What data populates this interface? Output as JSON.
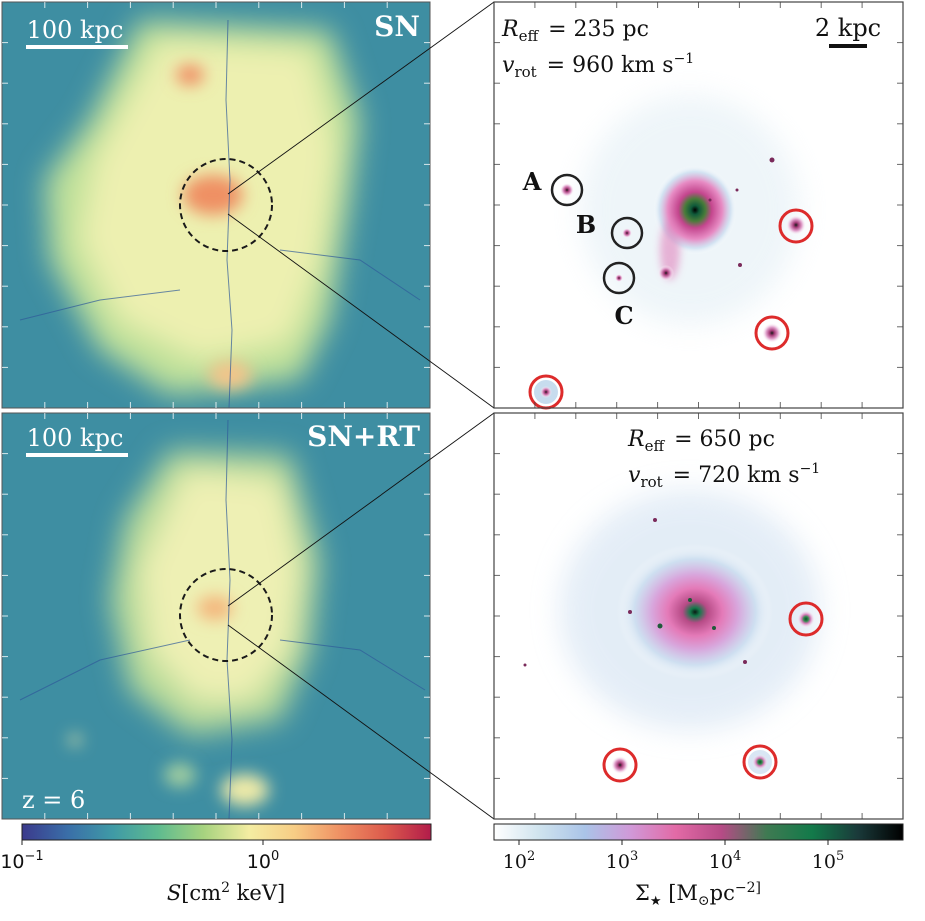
{
  "panels": {
    "top_left": {
      "label": "SN",
      "scalebar": "100 kpc"
    },
    "bottom_left": {
      "label": "SN+RT",
      "scalebar": "100 kpc",
      "redshift": "z = 6"
    },
    "top_right": {
      "scalebar": "2 kpc",
      "r_eff_symbol": "R",
      "r_eff_sub": "eff",
      "r_eff_value": "= 235 pc",
      "v_rot_symbol": "v",
      "v_rot_sub": "rot",
      "v_rot_value": "= 960 km s",
      "v_rot_exp": "−1",
      "satellites": {
        "a": "A",
        "b": "B",
        "c": "C"
      }
    },
    "bottom_right": {
      "r_eff_symbol": "R",
      "r_eff_sub": "eff",
      "r_eff_value": "= 650 pc",
      "v_rot_symbol": "v",
      "v_rot_sub": "rot",
      "v_rot_value": "= 720 km s",
      "v_rot_exp": "−1"
    }
  },
  "colorbar_left": {
    "tick_labels": [
      {
        "base": "10",
        "exp": "−1"
      },
      {
        "base": "10",
        "exp": "0"
      }
    ],
    "label_symbol": "S",
    "label_units": "[cm",
    "label_exp": "2",
    "label_tail": " keV]",
    "cmap": [
      "#3b3a8c",
      "#3a6ea8",
      "#3f9aa6",
      "#5fbb8f",
      "#a7d37f",
      "#f4eda2",
      "#f7cd85",
      "#ef9063",
      "#dc5a4c",
      "#b21c4a"
    ]
  },
  "colorbar_right": {
    "tick_labels": [
      {
        "base": "10",
        "exp": "2"
      },
      {
        "base": "10",
        "exp": "3"
      },
      {
        "base": "10",
        "exp": "4"
      },
      {
        "base": "10",
        "exp": "5"
      }
    ],
    "label_symbol": "Σ",
    "label_sub": "★",
    "label_units": " [M",
    "label_units_sub": "⊙",
    "label_tail": "pc",
    "label_exp": "−2]",
    "cmap": [
      "#ffffff",
      "#cfe3ee",
      "#aac4e8",
      "#d099d8",
      "#e26aa6",
      "#b64b86",
      "#3f7a52",
      "#137a4a",
      "#1a3a3a",
      "#000000"
    ]
  },
  "colors": {
    "bg_gas": "#3e8ea2",
    "gas_warm": "#eff0b2",
    "gas_hot": "#ef9063",
    "circle_red": "#dd2b2b",
    "circle_black": "#222222"
  }
}
